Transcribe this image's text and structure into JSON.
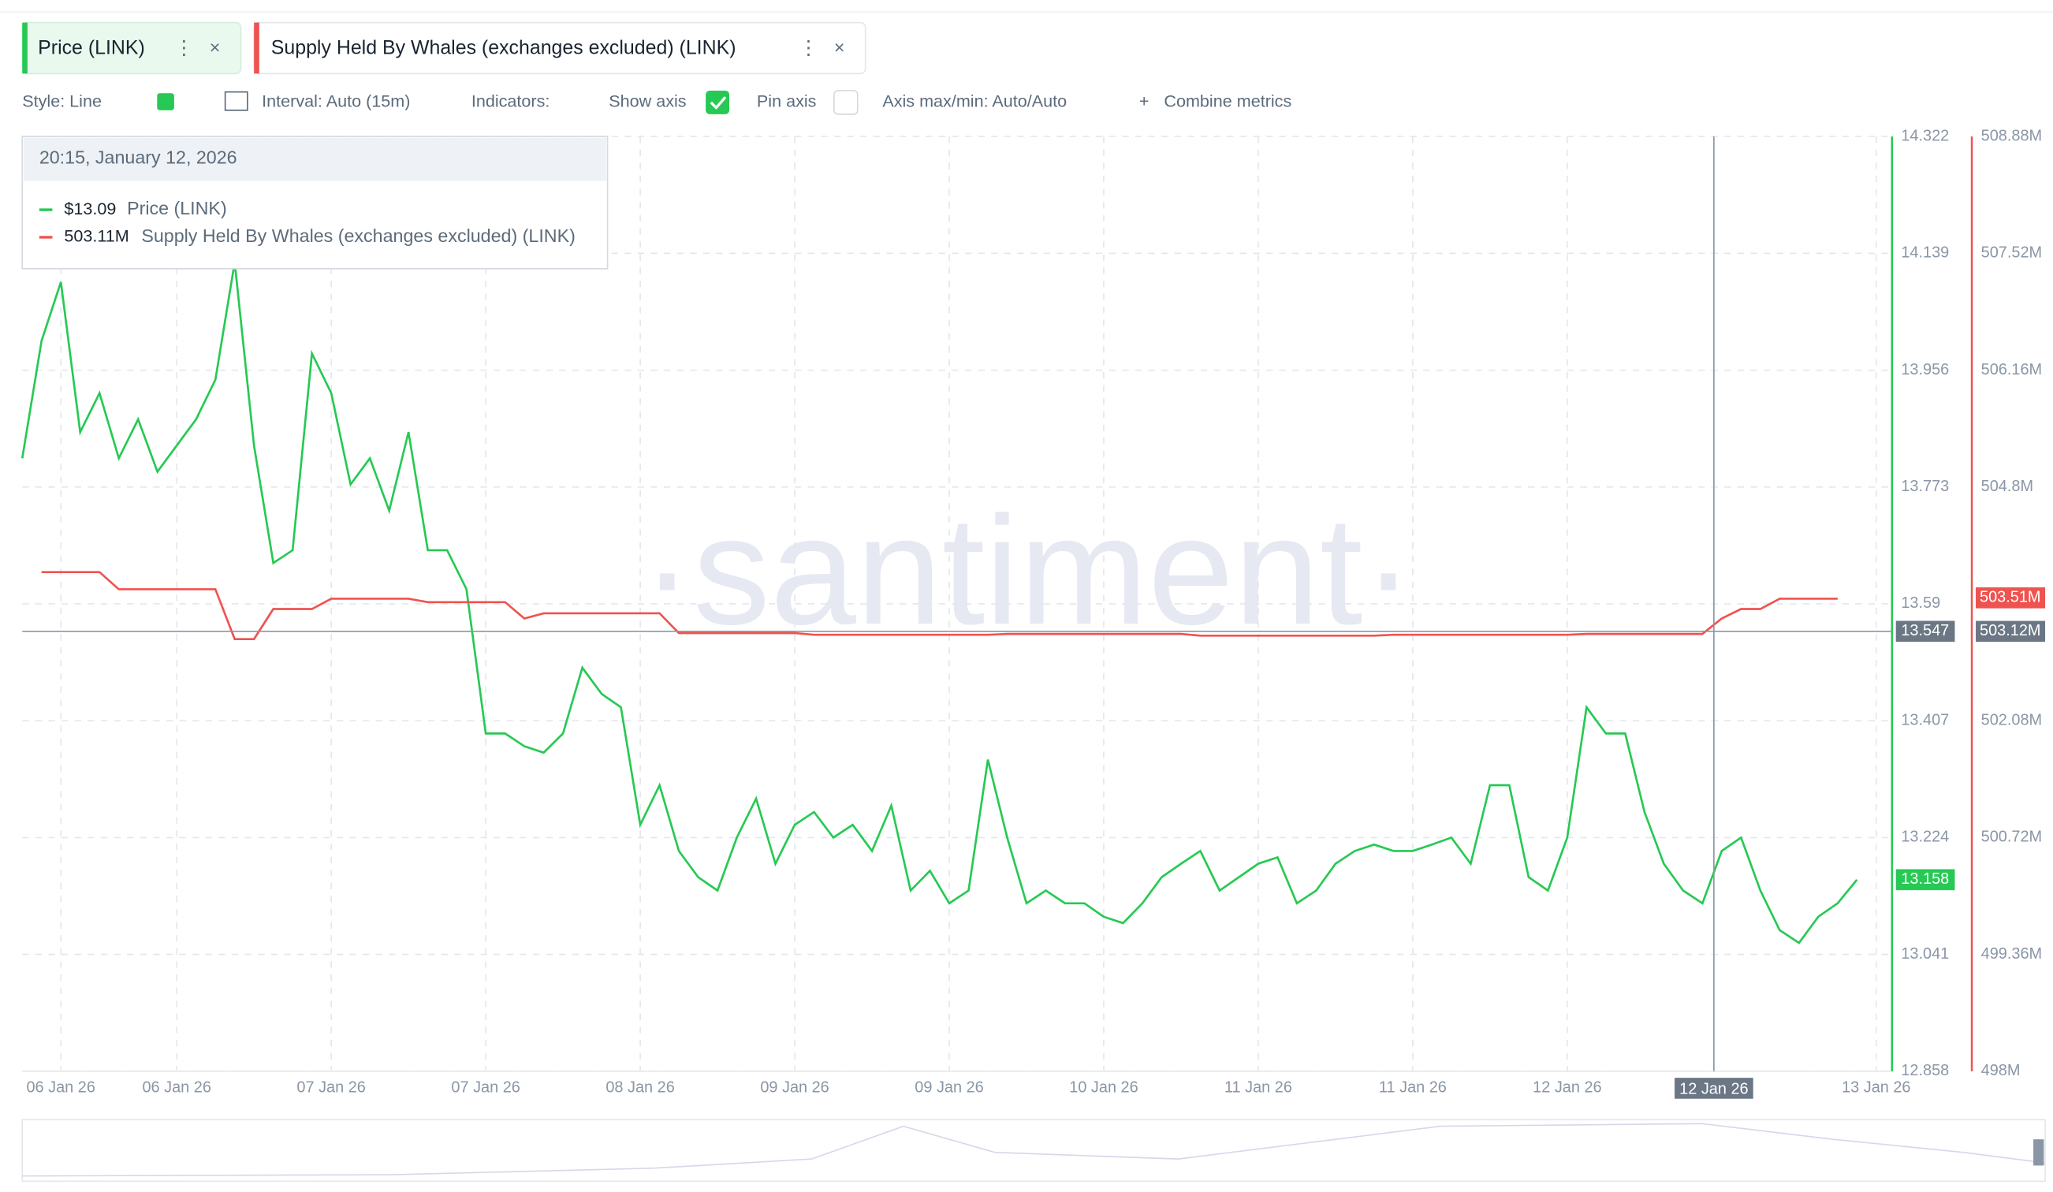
{
  "tabs": [
    "Price (LINK)",
    "Supply Held By Whales (exchanges excluded) (LINK)"
  ],
  "toolbar": {
    "style": "Style: Line",
    "interval": "Interval: Auto (15m)",
    "indicators": "Indicators:",
    "show_axis": "Show axis",
    "pin_axis": "Pin axis",
    "axis_maxmin": "Axis max/min: Auto/Auto",
    "combine": "Combine metrics"
  },
  "chart_data": {
    "type": "line",
    "watermark": "·santiment·",
    "grid": true,
    "tooltip": {
      "time": "20:15, January 12, 2026",
      "price_value": "$13.09",
      "price_name": "Price (LINK)",
      "supply_value": "503.11M",
      "supply_name": "Supply Held By Whales (exchanges excluded) (LINK)"
    },
    "categories": [
      null,
      null,
      "06 Jan 26",
      null,
      null,
      null,
      null,
      null,
      "06 Jan 26",
      null,
      null,
      null,
      null,
      null,
      null,
      null,
      "07 Jan 26",
      null,
      null,
      null,
      null,
      null,
      null,
      null,
      "07 Jan 26",
      null,
      null,
      null,
      null,
      null,
      null,
      null,
      "08 Jan 26",
      null,
      null,
      null,
      null,
      null,
      null,
      null,
      "09 Jan 26",
      null,
      null,
      null,
      null,
      null,
      null,
      null,
      "09 Jan 26",
      null,
      null,
      null,
      null,
      null,
      null,
      null,
      "10 Jan 26",
      null,
      null,
      null,
      null,
      null,
      null,
      null,
      "11 Jan 26",
      null,
      null,
      null,
      null,
      null,
      null,
      null,
      "11 Jan 26",
      null,
      null,
      null,
      null,
      null,
      null,
      null,
      "12 Jan 26",
      null,
      null,
      null,
      null,
      null,
      null,
      null,
      null,
      null,
      null,
      null,
      null,
      null,
      null,
      null,
      "13 Jan 26"
    ],
    "series": [
      {
        "name": "Price (LINK)",
        "color": "#26c953",
        "values": [
          13.818,
          14.002,
          14.094,
          13.859,
          13.92,
          13.818,
          13.879,
          13.797,
          13.838,
          13.879,
          13.941,
          14.125,
          13.838,
          13.654,
          13.674,
          13.982,
          13.92,
          13.777,
          13.818,
          13.736,
          13.859,
          13.674,
          13.674,
          13.613,
          13.387,
          13.387,
          13.367,
          13.357,
          13.387,
          13.49,
          13.449,
          13.428,
          13.244,
          13.306,
          13.203,
          13.162,
          13.141,
          13.224,
          13.285,
          13.183,
          13.244,
          13.264,
          13.224,
          13.244,
          13.203,
          13.274,
          13.141,
          13.172,
          13.121,
          13.141,
          13.346,
          13.224,
          13.121,
          13.141,
          13.121,
          13.121,
          13.1,
          13.09,
          13.121,
          13.162,
          13.183,
          13.203,
          13.141,
          13.162,
          13.183,
          13.193,
          13.121,
          13.141,
          13.183,
          13.203,
          13.213,
          13.203,
          13.203,
          13.213,
          13.224,
          13.183,
          13.306,
          13.306,
          13.162,
          13.141,
          13.224,
          13.428,
          13.387,
          13.387,
          13.264,
          13.183,
          13.141,
          13.121,
          13.203,
          13.224,
          13.141,
          13.079,
          13.059,
          13.1,
          13.121,
          13.158,
          null
        ]
      },
      {
        "name": "Supply Held By Whales (exchanges excluded) (LINK)",
        "color": "#ef5350",
        "axis": "y2",
        "values": [
          null,
          503.81,
          503.81,
          503.81,
          503.81,
          503.61,
          503.61,
          503.61,
          503.61,
          503.61,
          503.61,
          503.03,
          503.03,
          503.38,
          503.38,
          503.38,
          503.5,
          503.5,
          503.5,
          503.5,
          503.5,
          503.46,
          503.46,
          503.46,
          503.46,
          503.46,
          503.27,
          503.33,
          503.33,
          503.33,
          503.33,
          503.33,
          503.33,
          503.33,
          503.1,
          503.1,
          503.1,
          503.1,
          503.1,
          503.1,
          503.1,
          503.08,
          503.08,
          503.08,
          503.08,
          503.08,
          503.08,
          503.08,
          503.08,
          503.08,
          503.08,
          503.09,
          503.09,
          503.09,
          503.09,
          503.09,
          503.09,
          503.09,
          503.09,
          503.09,
          503.09,
          503.07,
          503.07,
          503.07,
          503.07,
          503.07,
          503.07,
          503.07,
          503.07,
          503.07,
          503.07,
          503.08,
          503.08,
          503.08,
          503.08,
          503.08,
          503.08,
          503.08,
          503.08,
          503.08,
          503.08,
          503.09,
          503.09,
          503.09,
          503.09,
          503.09,
          503.09,
          503.09,
          503.27,
          503.38,
          503.38,
          503.5,
          503.5,
          503.5,
          503.5,
          null,
          null
        ]
      }
    ],
    "ylim": [
      12.858,
      14.322
    ],
    "yticks": [
      12.858,
      13.041,
      13.224,
      13.407,
      13.59,
      13.773,
      13.956,
      14.139,
      14.322
    ],
    "y2lim": [
      498,
      508.88
    ],
    "y2ticks": [
      {
        "value": 498,
        "label": "498M"
      },
      {
        "value": 499.36,
        "label": "499.36M"
      },
      {
        "value": 500.72,
        "label": "500.72M"
      },
      {
        "value": 502.08,
        "label": "502.08M"
      },
      {
        "value": 504.8,
        "label": "504.8M"
      },
      {
        "value": 506.16,
        "label": "506.16M"
      },
      {
        "value": 507.52,
        "label": "507.52M"
      },
      {
        "value": 508.88,
        "label": "508.88M"
      }
    ],
    "last_price": 13.158,
    "last_supply": {
      "value": 503.51,
      "label": "503.51M"
    },
    "crosshair": {
      "price": 13.547,
      "supply": {
        "value": 503.12,
        "label": "503.12M"
      },
      "x_label": "12 Jan 26"
    }
  }
}
